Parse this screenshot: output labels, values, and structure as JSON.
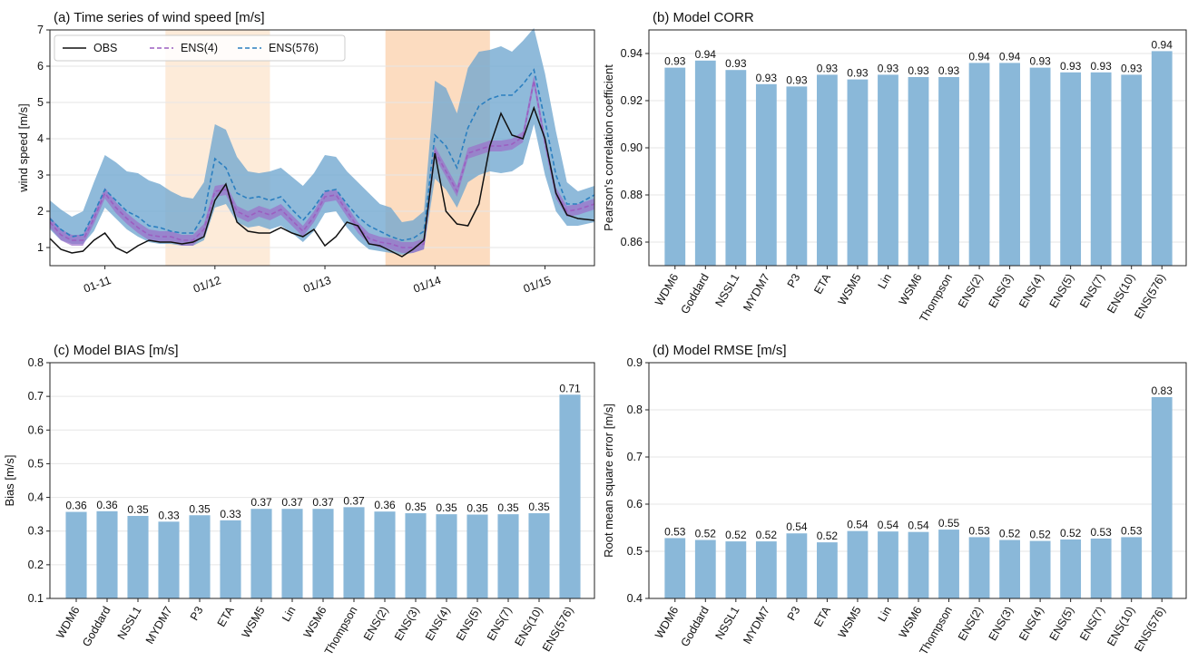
{
  "chart_data": [
    {
      "type": "line",
      "title": "(a) Time series of wind speed [m/s]",
      "xlabel": "",
      "ylabel": "wind speed [m/s]",
      "ylim": [
        0.5,
        7
      ],
      "yticks": [
        1,
        2,
        3,
        4,
        5,
        6,
        7
      ],
      "xrange": [
        10.5,
        15.45
      ],
      "xticks": [
        {
          "x": 11,
          "label": "01-11"
        },
        {
          "x": 12,
          "label": "01/12"
        },
        {
          "x": 13,
          "label": "01/13"
        },
        {
          "x": 14,
          "label": "01/14"
        },
        {
          "x": 15,
          "label": "01/15"
        }
      ],
      "shaded_periods": [
        {
          "from": 11.55,
          "to": 12.5,
          "color": "#fdebd9"
        },
        {
          "from": 13.55,
          "to": 14.5,
          "color": "#fcdcc0"
        }
      ],
      "grid": true,
      "legend": "top-left",
      "x": [
        10.5,
        10.6,
        10.7,
        10.8,
        10.9,
        11.0,
        11.1,
        11.2,
        11.3,
        11.4,
        11.5,
        11.6,
        11.7,
        11.8,
        11.9,
        12.0,
        12.1,
        12.2,
        12.3,
        12.4,
        12.5,
        12.6,
        12.7,
        12.8,
        12.9,
        13.0,
        13.1,
        13.2,
        13.3,
        13.4,
        13.5,
        13.6,
        13.7,
        13.8,
        13.9,
        14.0,
        14.1,
        14.2,
        14.3,
        14.4,
        14.5,
        14.6,
        14.7,
        14.8,
        14.9,
        15.0,
        15.1,
        15.2,
        15.3,
        15.45
      ],
      "series": [
        {
          "name": "OBS",
          "color": "#111111",
          "style": "solid",
          "values": [
            1.25,
            0.95,
            0.85,
            0.9,
            1.2,
            1.4,
            1.0,
            0.85,
            1.05,
            1.2,
            1.15,
            1.15,
            1.1,
            1.15,
            1.3,
            2.3,
            2.75,
            1.7,
            1.45,
            1.4,
            1.4,
            1.55,
            1.4,
            1.3,
            1.5,
            1.05,
            1.3,
            1.7,
            1.6,
            1.1,
            1.05,
            0.9,
            0.75,
            0.95,
            1.2,
            3.6,
            2.0,
            1.65,
            1.6,
            2.2,
            3.8,
            4.7,
            4.1,
            4.0,
            4.85,
            4.0,
            2.5,
            1.9,
            1.8,
            1.75
          ]
        },
        {
          "name": "ENS(4)",
          "color": "#9b5fc0",
          "style": "dashed",
          "values": [
            1.7,
            1.35,
            1.2,
            1.2,
            1.8,
            2.5,
            2.1,
            1.8,
            1.55,
            1.35,
            1.3,
            1.3,
            1.2,
            1.2,
            1.5,
            2.55,
            2.6,
            2.0,
            1.85,
            2.0,
            1.9,
            2.05,
            1.75,
            1.45,
            1.85,
            2.4,
            2.45,
            2.0,
            1.55,
            1.25,
            1.15,
            1.1,
            1.0,
            1.0,
            1.1,
            3.65,
            3.1,
            2.55,
            3.6,
            3.7,
            3.8,
            3.8,
            3.85,
            4.05,
            5.6,
            3.9,
            2.5,
            2.0,
            2.05,
            2.2
          ]
        },
        {
          "name": "ENS(576)",
          "color": "#2b7fc0",
          "style": "dashed",
          "values": [
            1.8,
            1.5,
            1.3,
            1.35,
            1.95,
            2.6,
            2.3,
            2.0,
            1.85,
            1.6,
            1.55,
            1.45,
            1.4,
            1.4,
            1.9,
            3.45,
            3.2,
            2.5,
            2.35,
            2.4,
            2.3,
            2.4,
            2.05,
            1.75,
            2.1,
            2.55,
            2.6,
            2.2,
            1.85,
            1.6,
            1.45,
            1.3,
            1.2,
            1.25,
            1.45,
            4.1,
            3.8,
            3.2,
            4.3,
            4.9,
            5.1,
            5.2,
            5.2,
            5.5,
            5.9,
            4.5,
            3.0,
            2.2,
            2.2,
            2.45
          ]
        }
      ],
      "band": {
        "color": "#6fa6cf",
        "lower": [
          1.5,
          1.2,
          1.1,
          1.1,
          1.45,
          2.1,
          1.8,
          1.5,
          1.3,
          1.15,
          1.1,
          1.1,
          1.05,
          1.05,
          1.2,
          2.1,
          2.2,
          1.7,
          1.55,
          1.6,
          1.5,
          1.6,
          1.4,
          1.15,
          1.45,
          1.95,
          2.0,
          1.55,
          1.2,
          0.95,
          0.9,
          0.85,
          0.8,
          0.85,
          0.95,
          2.9,
          2.6,
          2.1,
          2.8,
          3.0,
          3.1,
          3.05,
          3.1,
          3.3,
          4.4,
          3.0,
          2.0,
          1.6,
          1.6,
          1.7
        ],
        "upper": [
          2.3,
          2.05,
          1.85,
          2.0,
          2.8,
          3.55,
          3.35,
          3.1,
          3.05,
          2.85,
          2.75,
          2.55,
          2.4,
          2.35,
          2.8,
          4.4,
          4.25,
          3.5,
          3.1,
          3.05,
          3.1,
          3.2,
          2.95,
          2.7,
          3.05,
          3.55,
          3.5,
          3.1,
          2.8,
          2.5,
          2.2,
          2.1,
          1.7,
          1.75,
          2.0,
          5.6,
          5.4,
          4.7,
          5.95,
          6.4,
          6.45,
          6.55,
          6.4,
          6.7,
          7.05,
          5.8,
          4.2,
          2.8,
          2.55,
          2.7
        ]
      }
    },
    {
      "type": "bar",
      "title": "(b) Model CORR",
      "xlabel": "",
      "ylabel": "Pearson's correlation coefficient",
      "ylim": [
        0.85,
        0.95
      ],
      "yticks": [
        0.86,
        0.88,
        0.9,
        0.92,
        0.94
      ],
      "ytick_decimals": 2,
      "grid": true,
      "color": "#8ab8d9",
      "categories": [
        "WDM6",
        "Goddard",
        "NSSL1",
        "MYDM7",
        "P3",
        "ETA",
        "WSM5",
        "Lin",
        "WSM6",
        "Thompson",
        "ENS(2)",
        "ENS(3)",
        "ENS(4)",
        "ENS(5)",
        "ENS(7)",
        "ENS(10)",
        "ENS(576)"
      ],
      "values": [
        0.934,
        0.937,
        0.933,
        0.927,
        0.926,
        0.931,
        0.929,
        0.931,
        0.93,
        0.93,
        0.936,
        0.936,
        0.934,
        0.932,
        0.932,
        0.931,
        0.941
      ],
      "data_labels": [
        "0.93",
        "0.94",
        "0.93",
        "0.93",
        "0.93",
        "0.93",
        "0.93",
        "0.93",
        "0.93",
        "0.93",
        "0.94",
        "0.94",
        "0.93",
        "0.93",
        "0.93",
        "0.93",
        "0.94"
      ]
    },
    {
      "type": "bar",
      "title": "(c) Model BIAS [m/s]",
      "xlabel": "",
      "ylabel": "Bias [m/s]",
      "ylim": [
        0.1,
        0.8
      ],
      "yticks": [
        0.1,
        0.2,
        0.3,
        0.4,
        0.5,
        0.6,
        0.7,
        0.8
      ],
      "ytick_decimals": 1,
      "grid": true,
      "color": "#8ab8d9",
      "categories": [
        "WDM6",
        "Goddard",
        "NSSL1",
        "MYDM7",
        "P3",
        "ETA",
        "WSM5",
        "Lin",
        "WSM6",
        "Thompson",
        "ENS(2)",
        "ENS(3)",
        "ENS(4)",
        "ENS(5)",
        "ENS(7)",
        "ENS(10)",
        "ENS(576)"
      ],
      "values": [
        0.357,
        0.359,
        0.345,
        0.328,
        0.347,
        0.332,
        0.366,
        0.366,
        0.366,
        0.371,
        0.358,
        0.353,
        0.35,
        0.349,
        0.35,
        0.353,
        0.705
      ],
      "data_labels": [
        "0.36",
        "0.36",
        "0.35",
        "0.33",
        "0.35",
        "0.33",
        "0.37",
        "0.37",
        "0.37",
        "0.37",
        "0.36",
        "0.35",
        "0.35",
        "0.35",
        "0.35",
        "0.35",
        "0.71"
      ]
    },
    {
      "type": "bar",
      "title": "(d) Model RMSE [m/s]",
      "xlabel": "",
      "ylabel": "Root mean square error [m/s]",
      "ylim": [
        0.4,
        0.9
      ],
      "yticks": [
        0.4,
        0.5,
        0.6,
        0.7,
        0.8,
        0.9
      ],
      "ytick_decimals": 1,
      "grid": true,
      "color": "#8ab8d9",
      "categories": [
        "WDM6",
        "Goddard",
        "NSSL1",
        "MYDM7",
        "P3",
        "ETA",
        "WSM5",
        "Lin",
        "WSM6",
        "Thompson",
        "ENS(2)",
        "ENS(3)",
        "ENS(4)",
        "ENS(5)",
        "ENS(7)",
        "ENS(10)",
        "ENS(576)"
      ],
      "values": [
        0.528,
        0.524,
        0.521,
        0.521,
        0.538,
        0.519,
        0.543,
        0.542,
        0.541,
        0.546,
        0.53,
        0.524,
        0.522,
        0.525,
        0.527,
        0.53,
        0.827
      ],
      "data_labels": [
        "0.53",
        "0.52",
        "0.52",
        "0.52",
        "0.54",
        "0.52",
        "0.54",
        "0.54",
        "0.54",
        "0.55",
        "0.53",
        "0.52",
        "0.52",
        "0.52",
        "0.53",
        "0.53",
        "0.83"
      ]
    }
  ]
}
